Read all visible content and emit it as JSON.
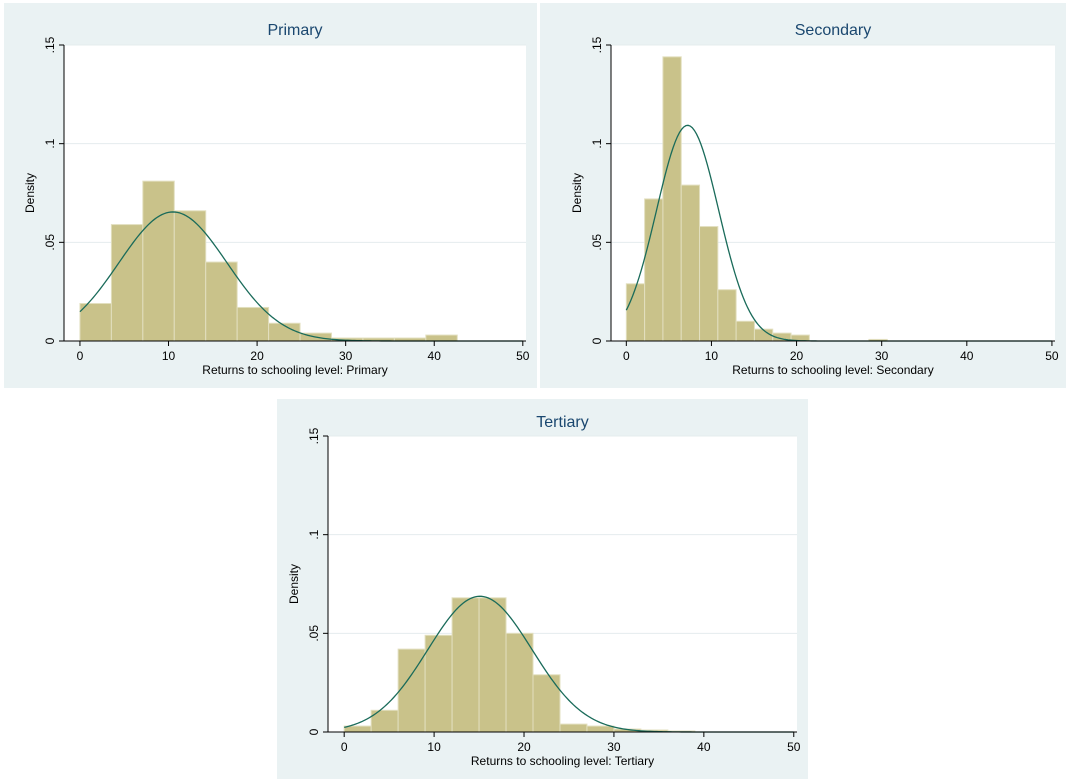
{
  "chart_data": [
    {
      "type": "bar",
      "subtype": "histogram-with-normal-density",
      "title": "Primary",
      "xlabel": "Returns to schooling level: Primary",
      "ylabel": "Density",
      "xlim": [
        0,
        50
      ],
      "ylim": [
        0,
        0.15
      ],
      "xticks": [
        "0",
        "10",
        "20",
        "30",
        "40",
        "50"
      ],
      "yticks": [
        "0",
        ".05",
        ".1",
        ".15"
      ],
      "bin_width": 3.55,
      "bins": [
        {
          "x0": 0,
          "x1": 3.55,
          "density": 0.019
        },
        {
          "x0": 3.55,
          "x1": 7.1,
          "density": 0.059
        },
        {
          "x0": 7.1,
          "x1": 10.65,
          "density": 0.081
        },
        {
          "x0": 10.65,
          "x1": 14.2,
          "density": 0.066
        },
        {
          "x0": 14.2,
          "x1": 17.75,
          "density": 0.04
        },
        {
          "x0": 17.75,
          "x1": 21.3,
          "density": 0.017
        },
        {
          "x0": 21.3,
          "x1": 24.85,
          "density": 0.009
        },
        {
          "x0": 24.85,
          "x1": 28.4,
          "density": 0.004
        },
        {
          "x0": 28.4,
          "x1": 31.95,
          "density": 0.0015
        },
        {
          "x0": 31.95,
          "x1": 35.5,
          "density": 0.0015
        },
        {
          "x0": 35.5,
          "x1": 39.05,
          "density": 0.0015
        },
        {
          "x0": 39.05,
          "x1": 42.6,
          "density": 0.003
        },
        {
          "x0": 42.6,
          "x1": 46.15,
          "density": 0
        }
      ],
      "normal_curve": {
        "mean": 10.5,
        "sd": 6.1
      },
      "grid": true
    },
    {
      "type": "bar",
      "subtype": "histogram-with-normal-density",
      "title": "Secondary",
      "xlabel": "Returns to schooling level: Secondary",
      "ylabel": "Density",
      "xlim": [
        0,
        50
      ],
      "ylim": [
        0,
        0.15
      ],
      "xticks": [
        "0",
        "10",
        "20",
        "30",
        "40",
        "50"
      ],
      "yticks": [
        "0",
        ".05",
        ".1",
        ".15"
      ],
      "bin_width": 2.15,
      "bins": [
        {
          "x0": 0,
          "x1": 2.15,
          "density": 0.029
        },
        {
          "x0": 2.15,
          "x1": 4.3,
          "density": 0.072
        },
        {
          "x0": 4.3,
          "x1": 6.45,
          "density": 0.144
        },
        {
          "x0": 6.45,
          "x1": 8.6,
          "density": 0.079
        },
        {
          "x0": 8.6,
          "x1": 10.75,
          "density": 0.058
        },
        {
          "x0": 10.75,
          "x1": 12.9,
          "density": 0.026
        },
        {
          "x0": 12.9,
          "x1": 15.05,
          "density": 0.01
        },
        {
          "x0": 15.05,
          "x1": 17.2,
          "density": 0.006
        },
        {
          "x0": 17.2,
          "x1": 19.35,
          "density": 0.004
        },
        {
          "x0": 19.35,
          "x1": 21.5,
          "density": 0.003
        },
        {
          "x0": 28.5,
          "x1": 30.65,
          "density": 0.0008
        }
      ],
      "normal_curve": {
        "mean": 7.2,
        "sd": 3.65
      },
      "grid": true
    },
    {
      "type": "bar",
      "subtype": "histogram-with-normal-density",
      "title": "Tertiary",
      "xlabel": "Returns to schooling level: Tertiary",
      "ylabel": "Density",
      "xlim": [
        0,
        50
      ],
      "ylim": [
        0,
        0.15
      ],
      "xticks": [
        "0",
        "10",
        "20",
        "30",
        "40",
        "50"
      ],
      "yticks": [
        "0",
        ".05",
        ".1",
        ".15"
      ],
      "bin_width": 3,
      "bins": [
        {
          "x0": 0,
          "x1": 3,
          "density": 0.003
        },
        {
          "x0": 3,
          "x1": 6,
          "density": 0.011
        },
        {
          "x0": 6,
          "x1": 9,
          "density": 0.042
        },
        {
          "x0": 9,
          "x1": 12,
          "density": 0.049
        },
        {
          "x0": 12,
          "x1": 15,
          "density": 0.068
        },
        {
          "x0": 15,
          "x1": 18,
          "density": 0.068
        },
        {
          "x0": 18,
          "x1": 21,
          "density": 0.05
        },
        {
          "x0": 21,
          "x1": 24,
          "density": 0.029
        },
        {
          "x0": 24,
          "x1": 27,
          "density": 0.004
        },
        {
          "x0": 27,
          "x1": 30,
          "density": 0.003
        },
        {
          "x0": 30,
          "x1": 33,
          "density": 0.0015
        },
        {
          "x0": 33,
          "x1": 36,
          "density": 0.001
        },
        {
          "x0": 36,
          "x1": 39,
          "density": 0.0005
        }
      ],
      "normal_curve": {
        "mean": 15.1,
        "sd": 5.8
      },
      "grid": true
    }
  ],
  "colors": {
    "panel_background": "#eaf2f3",
    "plot_background": "#ffffff",
    "bar_fill": "#c9c28a",
    "bar_edge": "#e2dfbf",
    "curve": "#1a6b5a",
    "title": "#1a476f",
    "gridline": "#e4ecee"
  }
}
